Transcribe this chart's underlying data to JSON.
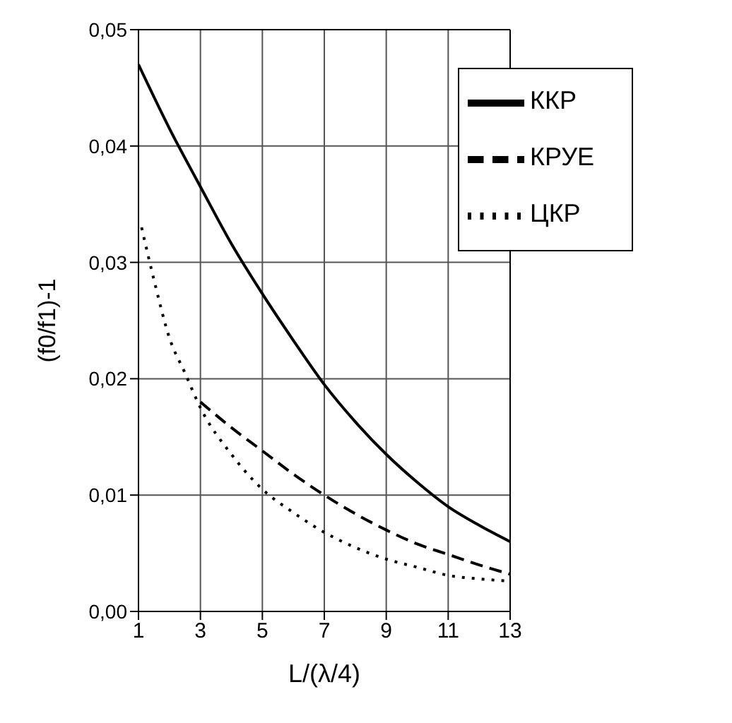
{
  "chart_data": {
    "type": "line",
    "xlabel": "L/(λ/4)",
    "ylabel": "(f0/f1)-1",
    "xlim": [
      1,
      13
    ],
    "xticks": [
      1,
      3,
      5,
      7,
      9,
      11,
      13
    ],
    "ylim": [
      0,
      0.05
    ],
    "yticks": [
      {
        "value": 0,
        "label": "0,00"
      },
      {
        "value": 0.01,
        "label": "0,01"
      },
      {
        "value": 0.02,
        "label": "0,02"
      },
      {
        "value": 0.03,
        "label": "0,03"
      },
      {
        "value": 0.04,
        "label": "0,04"
      },
      {
        "value": 0.05,
        "label": "0,05"
      }
    ],
    "grid": true,
    "legend": "top right",
    "marker": "none",
    "series": [
      {
        "name": "ККР",
        "color": "#000000",
        "line_style": "solid",
        "x": [
          1,
          2,
          3,
          4,
          5,
          6,
          7,
          8,
          9,
          10,
          11,
          12,
          13
        ],
        "values": [
          0.047,
          0.0415,
          0.0365,
          0.0316,
          0.0273,
          0.0233,
          0.0195,
          0.0163,
          0.0135,
          0.0111,
          0.009,
          0.0074,
          0.006
        ]
      },
      {
        "name": "КРУЕ",
        "color": "#000000",
        "line_style": "dashed",
        "x": [
          3,
          4,
          5,
          6,
          7,
          8,
          9,
          10,
          11,
          12,
          13
        ],
        "values": [
          0.018,
          0.0158,
          0.0138,
          0.0118,
          0.01,
          0.0084,
          0.007,
          0.0058,
          0.0049,
          0.004,
          0.0032
        ]
      },
      {
        "name": "ЦКР",
        "color": "#000000",
        "line_style": "dotted",
        "x": [
          1.1,
          1.5,
          2,
          2.5,
          3,
          4,
          5,
          6,
          7,
          8,
          9,
          10,
          11,
          12,
          13
        ],
        "values": [
          0.033,
          0.0285,
          0.0235,
          0.0205,
          0.0175,
          0.0135,
          0.0105,
          0.0085,
          0.0068,
          0.0055,
          0.0045,
          0.0038,
          0.0031,
          0.0028,
          0.0026
        ]
      }
    ]
  }
}
